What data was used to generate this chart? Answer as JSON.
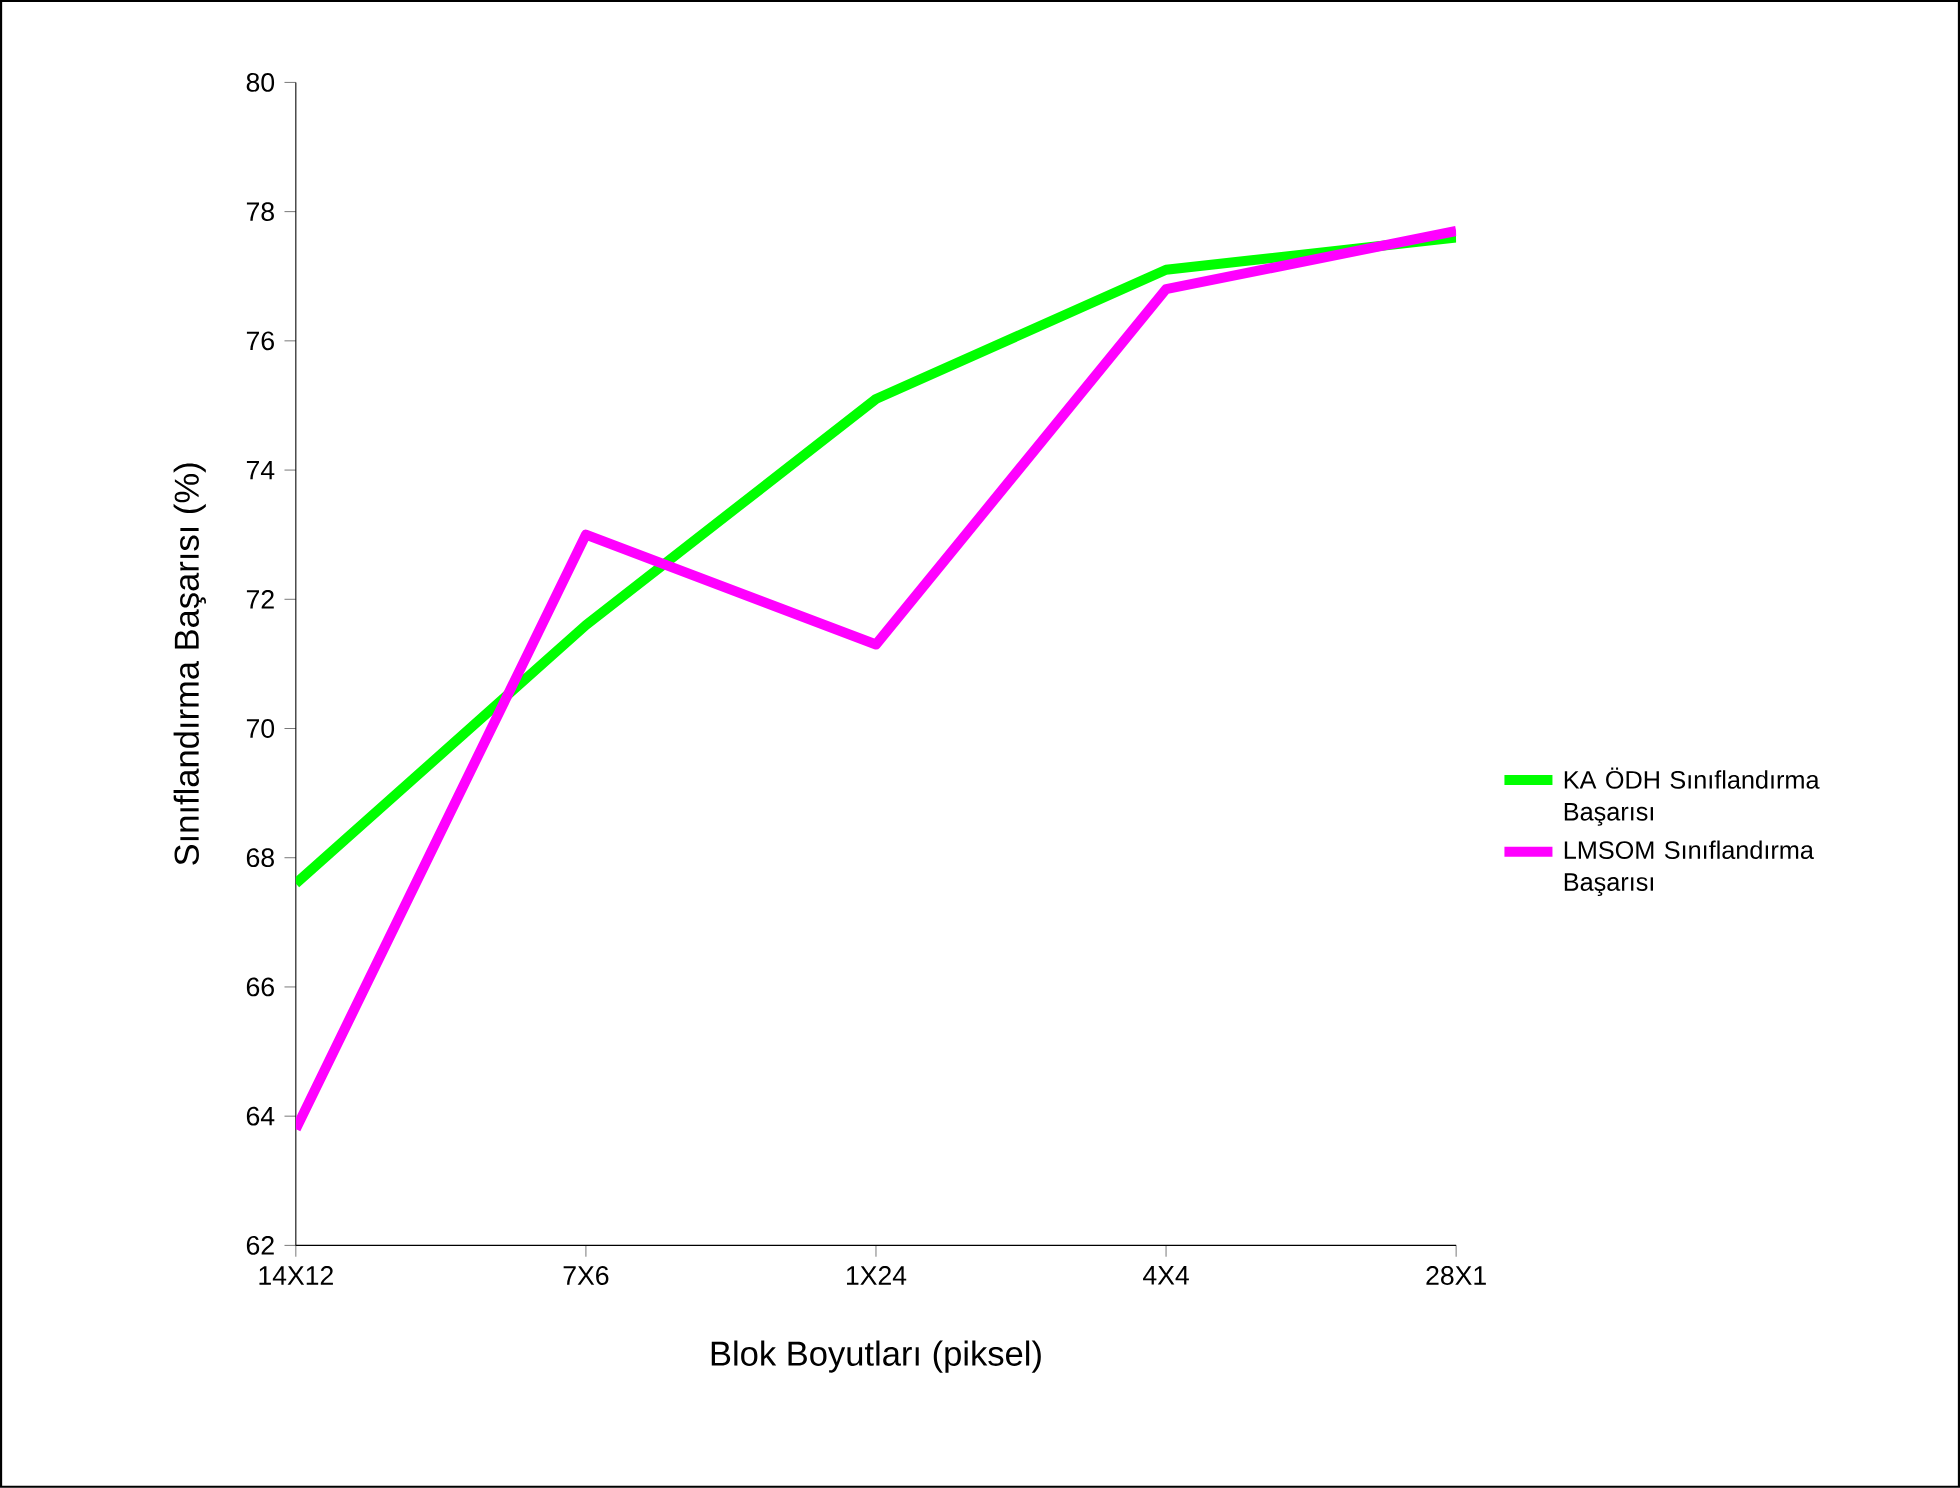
{
  "chart_data": {
    "type": "line",
    "xlabel": "Blok Boyutları (piksel)",
    "ylabel": "Sınıflandırma Başarısı (%)",
    "categories": [
      "14X12",
      "7X6",
      "1X24",
      "4X4",
      "28X1"
    ],
    "series": [
      {
        "name": "KA ÖDH Sınıflandırma Başarısı",
        "color": "#00ff00",
        "values": [
          67.6,
          71.6,
          75.1,
          77.1,
          77.6
        ]
      },
      {
        "name": "LMSOM Sınıflandırma Başarısı",
        "color": "#ff00ff",
        "values": [
          63.8,
          73.0,
          71.3,
          76.8,
          77.7
        ]
      }
    ],
    "ylim": [
      62,
      80
    ],
    "yticks": [
      62,
      64,
      66,
      68,
      70,
      72,
      74,
      76,
      78,
      80
    ],
    "grid": false,
    "legend": "right",
    "marker": "none",
    "line_style": "solid"
  }
}
